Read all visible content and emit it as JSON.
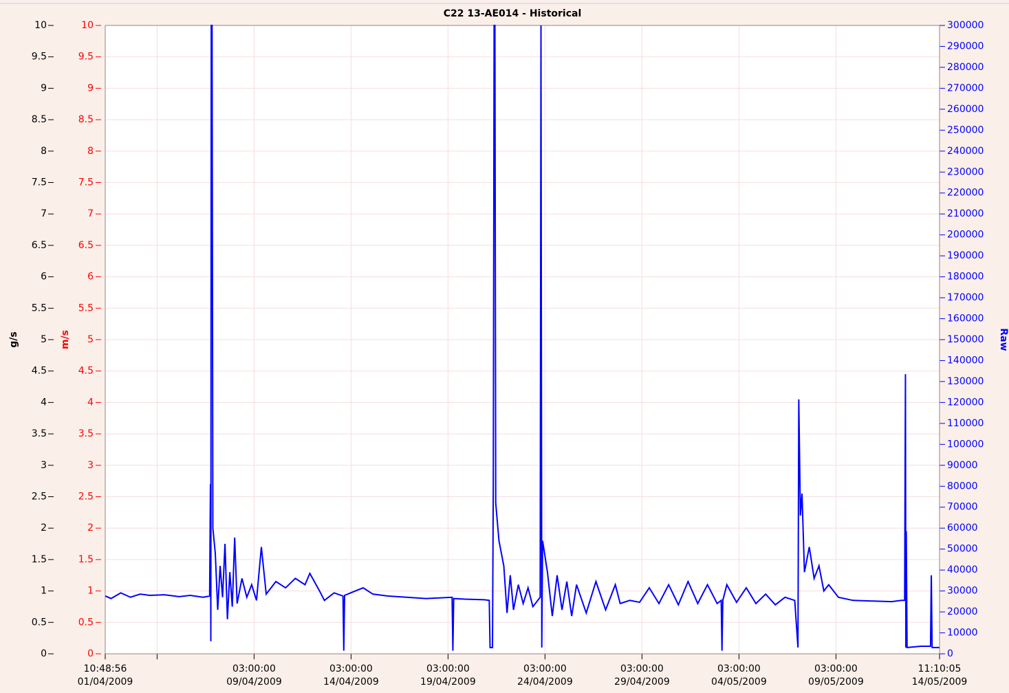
{
  "chart_data": {
    "type": "line",
    "title": "C22 13-AE014 - Historical",
    "grid": true,
    "axes": [
      {
        "label": "g/s",
        "color": "#000000",
        "side": "left",
        "lim": [
          0,
          10
        ],
        "ticks": [
          0,
          0.5,
          1,
          1.5,
          2,
          2.5,
          3,
          3.5,
          4,
          4.5,
          5,
          5.5,
          6,
          6.5,
          7,
          7.5,
          8,
          8.5,
          9,
          9.5,
          10
        ]
      },
      {
        "label": "m/s",
        "color": "#ff0000",
        "side": "left",
        "lim": [
          0,
          10
        ],
        "ticks": [
          0,
          0.5,
          1,
          1.5,
          2,
          2.5,
          3,
          3.5,
          4,
          4.5,
          5,
          5.5,
          6,
          6.5,
          7,
          7.5,
          8,
          8.5,
          9,
          9.5,
          10
        ]
      },
      {
        "label": "Raw",
        "color": "#0000ff",
        "side": "right",
        "lim": [
          0,
          300000
        ],
        "ticks": [
          0,
          10000,
          20000,
          30000,
          40000,
          50000,
          60000,
          70000,
          80000,
          90000,
          100000,
          110000,
          120000,
          130000,
          140000,
          150000,
          160000,
          170000,
          180000,
          190000,
          200000,
          210000,
          220000,
          230000,
          240000,
          250000,
          260000,
          270000,
          280000,
          290000,
          300000
        ]
      }
    ],
    "xlim": [
      "2009-04-01T10:48:56",
      "2009-05-14T11:10:05"
    ],
    "xticks": [
      {
        "value": "2009-04-01T10:48:56",
        "label": [
          "10:48:56",
          "01/04/2009"
        ]
      },
      {
        "value": "2009-04-09T03:00:00",
        "label": [
          "03:00:00",
          "09/04/2009"
        ]
      },
      {
        "value": "2009-04-14T03:00:00",
        "label": [
          "03:00:00",
          "14/04/2009"
        ]
      },
      {
        "value": "2009-04-19T03:00:00",
        "label": [
          "03:00:00",
          "19/04/2009"
        ]
      },
      {
        "value": "2009-04-24T03:00:00",
        "label": [
          "03:00:00",
          "24/04/2009"
        ]
      },
      {
        "value": "2009-04-29T03:00:00",
        "label": [
          "03:00:00",
          "29/04/2009"
        ]
      },
      {
        "value": "2009-05-04T03:00:00",
        "label": [
          "03:00:00",
          "04/05/2009"
        ]
      },
      {
        "value": "2009-05-09T03:00:00",
        "label": [
          "03:00:00",
          "09/05/2009"
        ]
      },
      {
        "value": "2009-05-14T11:10:05",
        "label": [
          "11:10:05",
          "14/05/2009"
        ]
      }
    ],
    "xminor_ticks": [
      "2009-04-04T03:00:00"
    ],
    "x": [
      "2009-04-01T11:00",
      "2009-04-01T18:00",
      "2009-04-02T06:00",
      "2009-04-02T18:00",
      "2009-04-03T06:00",
      "2009-04-03T18:00",
      "2009-04-04T12:00",
      "2009-04-05T06:00",
      "2009-04-05T20:00",
      "2009-04-06T12:00",
      "2009-04-06T20:00",
      "2009-04-06T21:00",
      "2009-04-06T21:30",
      "2009-04-06T22:00",
      "2009-04-06T23:00",
      "2009-04-07T00:00",
      "2009-04-07T03:00",
      "2009-04-07T06:00",
      "2009-04-07T09:00",
      "2009-04-07T12:00",
      "2009-04-07T15:00",
      "2009-04-07T18:00",
      "2009-04-07T21:00",
      "2009-04-08T00:00",
      "2009-04-08T03:00",
      "2009-04-08T06:00",
      "2009-04-08T12:00",
      "2009-04-08T18:00",
      "2009-04-09T00:00",
      "2009-04-09T06:00",
      "2009-04-09T12:00",
      "2009-04-09T18:00",
      "2009-04-10T06:00",
      "2009-04-10T18:00",
      "2009-04-11T06:00",
      "2009-04-11T18:00",
      "2009-04-12T00:00",
      "2009-04-12T12:00",
      "2009-04-12T18:00",
      "2009-04-13T06:00",
      "2009-04-13T17:00",
      "2009-04-13T18:00",
      "2009-04-13T19:00",
      "2009-04-14T12:00",
      "2009-04-14T18:00",
      "2009-04-15T06:00",
      "2009-04-16T00:00",
      "2009-04-17T00:00",
      "2009-04-18T00:00",
      "2009-04-19T08:00",
      "2009-04-19T09:00",
      "2009-04-19T10:00",
      "2009-04-20T00:00",
      "2009-04-21T00:00",
      "2009-04-21T06:00",
      "2009-04-21T07:00",
      "2009-04-21T10:00",
      "2009-04-21T11:00",
      "2009-04-21T12:00",
      "2009-04-21T13:00",
      "2009-04-21T14:00",
      "2009-04-21T18:00",
      "2009-04-22T00:00",
      "2009-04-22T04:00",
      "2009-04-22T08:00",
      "2009-04-22T12:00",
      "2009-04-22T18:00",
      "2009-04-23T00:00",
      "2009-04-23T06:00",
      "2009-04-23T12:00",
      "2009-04-23T21:00",
      "2009-04-23T22:00",
      "2009-04-23T23:00",
      "2009-04-24T00:00",
      "2009-04-24T06:00",
      "2009-04-24T12:00",
      "2009-04-24T18:00",
      "2009-04-25T00:00",
      "2009-04-25T06:00",
      "2009-04-25T12:00",
      "2009-04-25T18:00",
      "2009-04-26T06:00",
      "2009-04-26T18:00",
      "2009-04-27T06:00",
      "2009-04-27T18:00",
      "2009-04-28T00:00",
      "2009-04-28T12:00",
      "2009-04-29T00:00",
      "2009-04-29T12:00",
      "2009-04-30T00:00",
      "2009-04-30T12:00",
      "2009-05-01T00:00",
      "2009-05-01T12:00",
      "2009-05-02T00:00",
      "2009-05-02T12:00",
      "2009-05-03T00:00",
      "2009-05-03T05:00",
      "2009-05-03T06:00",
      "2009-05-03T07:00",
      "2009-05-03T12:00",
      "2009-05-04T00:00",
      "2009-05-04T12:00",
      "2009-05-05T00:00",
      "2009-05-05T12:00",
      "2009-05-06T00:00",
      "2009-05-06T12:00",
      "2009-05-07T00:00",
      "2009-05-07T04:00",
      "2009-05-07T05:00",
      "2009-05-07T07:00",
      "2009-05-07T09:00",
      "2009-05-07T12:00",
      "2009-05-07T18:00",
      "2009-05-08T00:00",
      "2009-05-08T06:00",
      "2009-05-08T12:00",
      "2009-05-08T18:00",
      "2009-05-09T06:00",
      "2009-05-10T00:00",
      "2009-05-11T00:00",
      "2009-05-12T00:00",
      "2009-05-12T12:00",
      "2009-05-12T16:00",
      "2009-05-12T17:00",
      "2009-05-12T17:30",
      "2009-05-12T18:00",
      "2009-05-12T19:00",
      "2009-05-13T12:00",
      "2009-05-14T00:00",
      "2009-05-14T01:00",
      "2009-05-14T02:00",
      "2009-05-14T11:00"
    ],
    "series": [
      {
        "color": "#0000ff",
        "values": [
          0.92,
          0.88,
          0.97,
          0.9,
          0.95,
          0.93,
          0.94,
          0.91,
          0.93,
          0.9,
          0.92,
          2.7,
          0.2,
          10,
          10,
          2.0,
          1.6,
          0.7,
          1.4,
          0.9,
          1.75,
          0.55,
          1.3,
          0.75,
          1.85,
          0.8,
          1.2,
          0.9,
          1.1,
          0.85,
          1.7,
          0.95,
          1.15,
          1.05,
          1.2,
          1.1,
          1.28,
          1.0,
          0.85,
          0.97,
          0.92,
          0.05,
          0.93,
          1.02,
          1.05,
          0.95,
          0.92,
          0.9,
          0.88,
          0.9,
          0.05,
          0.88,
          0.87,
          0.86,
          0.85,
          0.1,
          0.1,
          2.7,
          10,
          10,
          2.4,
          1.8,
          1.4,
          0.65,
          1.25,
          0.7,
          1.1,
          0.8,
          1.05,
          0.75,
          0.9,
          10,
          0.1,
          1.8,
          1.3,
          0.6,
          1.25,
          0.7,
          1.15,
          0.6,
          1.1,
          0.65,
          1.15,
          0.7,
          1.1,
          0.8,
          0.85,
          0.82,
          1.05,
          0.8,
          1.1,
          0.78,
          1.15,
          0.8,
          1.1,
          0.8,
          0.85,
          0.05,
          0.85,
          1.1,
          0.82,
          1.05,
          0.8,
          0.95,
          0.78,
          0.9,
          0.85,
          0.1,
          4.05,
          2.2,
          2.55,
          1.3,
          1.7,
          1.2,
          1.4,
          1.0,
          1.1,
          0.9,
          0.85,
          0.84,
          0.83,
          0.85,
          0.85,
          4.45,
          0.1,
          1.95,
          0.1,
          0.12,
          0.12,
          1.25,
          0.1,
          0.1
        ]
      }
    ]
  }
}
